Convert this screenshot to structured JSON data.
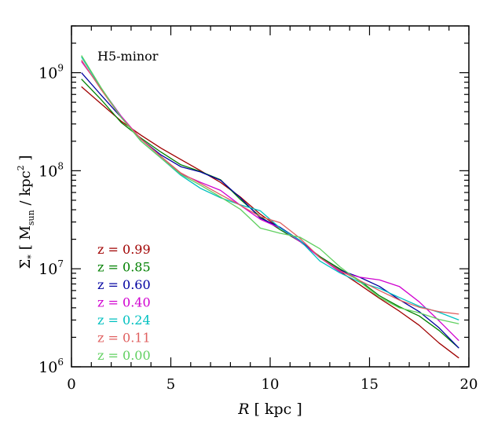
{
  "chart_data": {
    "type": "line",
    "annotation": "H5-minor",
    "xlabel": {
      "italic": "R",
      "rest": " [ kpc ]"
    },
    "ylabel": {
      "sym": "Σ",
      "sub": "*",
      "bracket_open": "[ M",
      "sun": "sun",
      "mid": " / kpc",
      "pow": "2",
      "bracket_close": " ]"
    },
    "xlim": [
      0,
      20
    ],
    "ylim": [
      1000000,
      3000000000
    ],
    "yscale": "log",
    "xticks": [
      0,
      5,
      10,
      15,
      20
    ],
    "xtick_labels": [
      "0",
      "5",
      "10",
      "15",
      "20"
    ],
    "yticks": [
      1000000,
      10000000,
      100000000,
      1000000000
    ],
    "ytick_labels": [
      {
        "base": "10",
        "exp": "6"
      },
      {
        "base": "10",
        "exp": "7"
      },
      {
        "base": "10",
        "exp": "8"
      },
      {
        "base": "10",
        "exp": "9"
      }
    ],
    "legend_position": "lower-left",
    "x": [
      0.5,
      1.5,
      2.5,
      3.5,
      4.5,
      5.5,
      6.5,
      7.5,
      8.5,
      9.5,
      10.5,
      11.5,
      12.5,
      13.5,
      14.5,
      15.5,
      16.5,
      17.5,
      18.5,
      19.5
    ],
    "series": [
      {
        "name": "z = 0.99",
        "color": "#a00000",
        "values": [
          720000000.0,
          480000000.0,
          320000000.0,
          230000000.0,
          170000000.0,
          130000000.0,
          100000000.0,
          76000000.0,
          54000000.0,
          36000000.0,
          26000000.0,
          19000000.0,
          13300000.0,
          9400000.0,
          6900000.0,
          5000000.0,
          3700000.0,
          2650000.0,
          1750000.0,
          1230000.0
        ]
      },
      {
        "name": "z = 0.85",
        "color": "#008000",
        "values": [
          860000000.0,
          530000000.0,
          310000000.0,
          215000000.0,
          155000000.0,
          115000000.0,
          98000000.0,
          81000000.0,
          51000000.0,
          34000000.0,
          25000000.0,
          19000000.0,
          13300000.0,
          10000000.0,
          7600000.0,
          5300000.0,
          4100000.0,
          3300000.0,
          2350000.0,
          1550000.0
        ]
      },
      {
        "name": "z = 0.60",
        "color": "#0000a0",
        "values": [
          1000000000.0,
          590000000.0,
          350000000.0,
          210000000.0,
          145000000.0,
          110000000.0,
          97000000.0,
          80000000.0,
          53000000.0,
          33000000.0,
          26500000.0,
          19500000.0,
          13000000.0,
          9700000.0,
          8200000.0,
          6600000.0,
          4850000.0,
          3650000.0,
          2500000.0,
          1550000.0
        ]
      },
      {
        "name": "z = 0.40",
        "color": "#d000d0",
        "values": [
          1300000000.0,
          690000000.0,
          360000000.0,
          210000000.0,
          140000000.0,
          93000000.0,
          76000000.0,
          63000000.0,
          44500000.0,
          32000000.0,
          26000000.0,
          19000000.0,
          13000000.0,
          9300000.0,
          8200000.0,
          7700000.0,
          6600000.0,
          4600000.0,
          2950000.0,
          1850000.0
        ]
      },
      {
        "name": "z = 0.24",
        "color": "#00c0c0",
        "values": [
          1450000000.0,
          690000000.0,
          350000000.0,
          200000000.0,
          135000000.0,
          90000000.0,
          66000000.0,
          53000000.0,
          45000000.0,
          39000000.0,
          26000000.0,
          19500000.0,
          12000000.0,
          9100000.0,
          7300000.0,
          6300000.0,
          5100000.0,
          4150000.0,
          3600000.0,
          3000000.0
        ]
      },
      {
        "name": "z = 0.11",
        "color": "#e06060",
        "values": [
          1350000000.0,
          670000000.0,
          350000000.0,
          210000000.0,
          140000000.0,
          95000000.0,
          74000000.0,
          57000000.0,
          44500000.0,
          34000000.0,
          29500000.0,
          20500000.0,
          13000000.0,
          9600000.0,
          7600000.0,
          6000000.0,
          4800000.0,
          4050000.0,
          3650000.0,
          3450000.0
        ]
      },
      {
        "name": "z = 0.00",
        "color": "#60d060",
        "values": [
          1500000000.0,
          700000000.0,
          350000000.0,
          200000000.0,
          135000000.0,
          92000000.0,
          71000000.0,
          54000000.0,
          40500000.0,
          26000000.0,
          23000000.0,
          21000000.0,
          16000000.0,
          10500000.0,
          7400000.0,
          5100000.0,
          4000000.0,
          3550000.0,
          3050000.0,
          2750000.0
        ]
      }
    ]
  }
}
